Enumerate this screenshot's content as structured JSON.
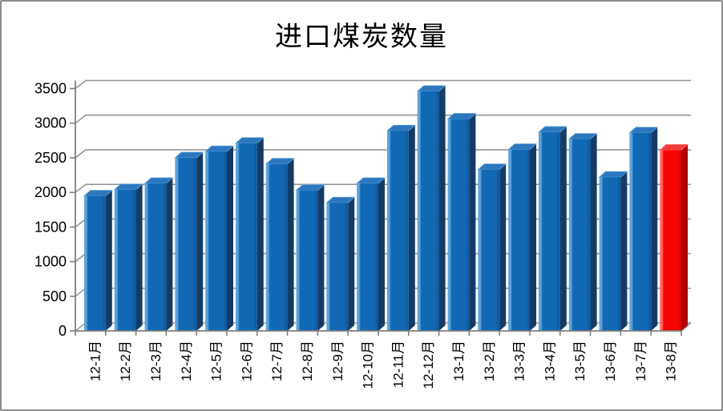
{
  "chart_data": {
    "type": "bar",
    "title": "进口煤炭数量",
    "categories": [
      "12-1月",
      "12-2月",
      "12-3月",
      "12-4月",
      "12-5月",
      "12-6月",
      "12-7月",
      "12-8月",
      "12-9月",
      "12-10月",
      "12-11月",
      "12-12月",
      "13-1月",
      "13-2月",
      "13-3月",
      "13-4月",
      "13-5月",
      "13-6月",
      "13-7月",
      "13-8月"
    ],
    "values": [
      1950,
      2040,
      2130,
      2500,
      2590,
      2710,
      2410,
      2030,
      1850,
      2130,
      2890,
      3460,
      3060,
      2330,
      2620,
      2870,
      2770,
      2220,
      2860,
      2610
    ],
    "highlight_index": 19,
    "xlabel": "",
    "ylabel": "",
    "ylim": [
      0,
      3500
    ],
    "ytick_step": 500,
    "ytick_labels": [
      "0",
      "500",
      "1000",
      "1500",
      "2000",
      "2500",
      "3000",
      "3500"
    ],
    "grid": true,
    "legend": false,
    "style": "3d-column",
    "colors": {
      "bar_front": "#1168B4",
      "bar_front_highlight": "#5EA4DC",
      "bar_front_shade": "#0D5697",
      "bar_top": "#2C77BE",
      "bar_side": "#143B66",
      "highlight_front": "#F70404",
      "highlight_front_highlight": "#FF6B6B",
      "highlight_front_shade": "#D40000",
      "highlight_top": "#F63B3B",
      "highlight_side": "#B00000",
      "grid_line": "#969696",
      "axis_line": "#7F7F7F",
      "label_text": "#000000",
      "frame_border": "#8C8C8C"
    }
  }
}
